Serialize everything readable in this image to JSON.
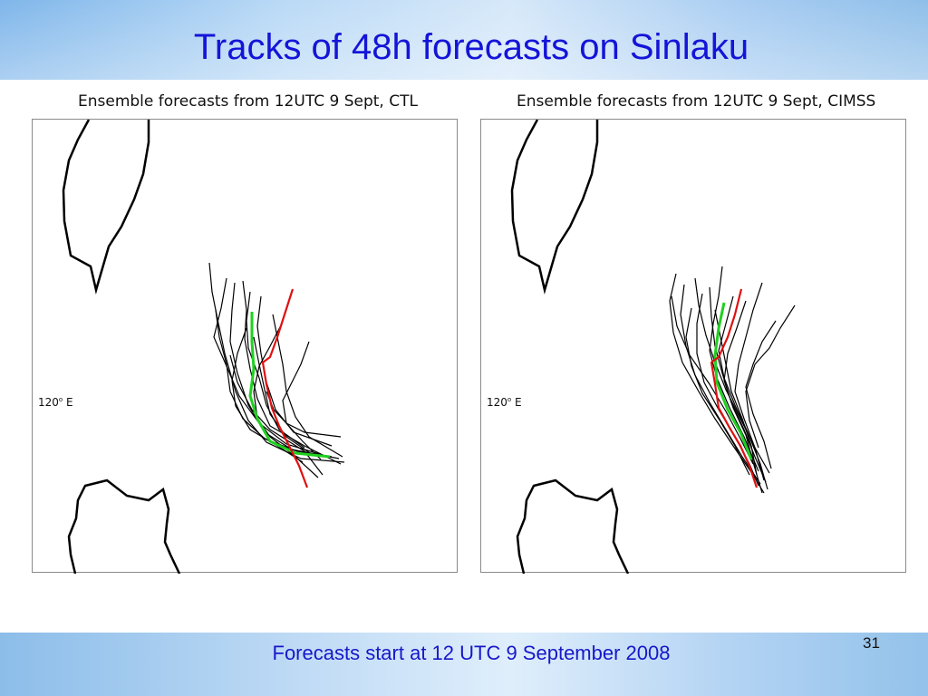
{
  "slide": {
    "title": "Tracks of 48h forecasts on Sinlaku",
    "caption": "Forecasts start at 12 UTC 9 September 2008",
    "page_number": "31"
  },
  "panels": [
    {
      "title": "Ensemble forecasts from 12UTC 9 Sept, CTL",
      "lon_label": "120",
      "lon_suffix": " E"
    },
    {
      "title": "Ensemble forecasts from 12UTC 9 Sept, CIMSS",
      "lon_label": "120",
      "lon_suffix": " E"
    }
  ],
  "colors": {
    "title": "#1414d8",
    "ensemble_track": "#000000",
    "mean_track": "#20d020",
    "observed_track": "#e01010"
  }
}
